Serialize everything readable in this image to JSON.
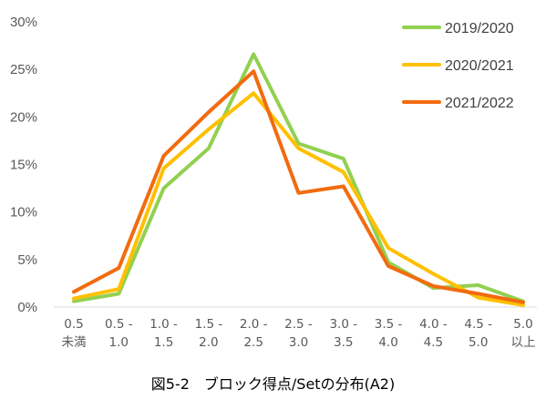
{
  "chart_data": {
    "type": "line",
    "title": "図5-2　ブロック得点/Setの分布(A2)",
    "categories": [
      [
        "0.5",
        "未満"
      ],
      [
        "0.5 -",
        "1.0"
      ],
      [
        "1.0 -",
        "1.5"
      ],
      [
        "1.5 -",
        "2.0"
      ],
      [
        "2.0 -",
        "2.5"
      ],
      [
        "2.5 -",
        "3.0"
      ],
      [
        "3.0 -",
        "3.5"
      ],
      [
        "3.5 -",
        "4.0"
      ],
      [
        "4.0 -",
        "4.5"
      ],
      [
        "4.5 -",
        "5.0"
      ],
      [
        "5.0",
        "以上"
      ]
    ],
    "yticks": [
      "0%",
      "5%",
      "10%",
      "15%",
      "20%",
      "25%",
      "30%"
    ],
    "ylim": [
      0,
      30
    ],
    "grid": false,
    "legend_position": "top-right",
    "series": [
      {
        "name": "2019/2020",
        "color": "#92d050",
        "values": [
          0.6,
          1.4,
          12.5,
          16.7,
          26.6,
          17.2,
          15.6,
          4.7,
          2.0,
          2.3,
          0.6
        ]
      },
      {
        "name": "2020/2021",
        "color": "#ffc000",
        "values": [
          0.9,
          1.9,
          14.6,
          18.7,
          22.5,
          16.7,
          14.2,
          6.2,
          3.5,
          1.0,
          0.2
        ]
      },
      {
        "name": "2021/2022",
        "color": "#f26b0f",
        "values": [
          1.6,
          4.1,
          15.9,
          20.5,
          24.8,
          12.0,
          12.7,
          4.3,
          2.2,
          1.4,
          0.5
        ]
      }
    ]
  }
}
